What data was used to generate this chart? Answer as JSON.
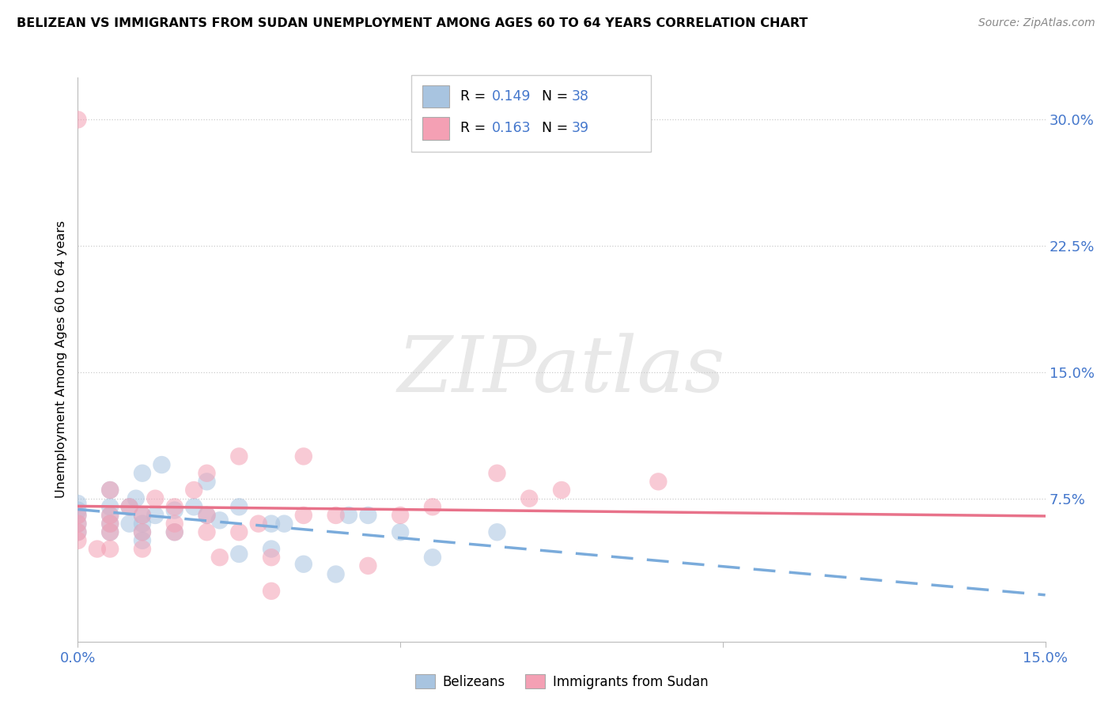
{
  "title": "BELIZEAN VS IMMIGRANTS FROM SUDAN UNEMPLOYMENT AMONG AGES 60 TO 64 YEARS CORRELATION CHART",
  "source": "Source: ZipAtlas.com",
  "ylabel": "Unemployment Among Ages 60 to 64 years",
  "xlim": [
    0.0,
    0.15
  ],
  "ylim": [
    -0.01,
    0.325
  ],
  "xtick_positions": [
    0.0,
    0.05,
    0.1,
    0.15
  ],
  "xticklabels": [
    "0.0%",
    "",
    "",
    "15.0%"
  ],
  "ytick_positions": [
    0.075,
    0.15,
    0.225,
    0.3
  ],
  "ytick_labels": [
    "7.5%",
    "15.0%",
    "22.5%",
    "30.0%"
  ],
  "belizean_color": "#a8c4e0",
  "sudan_color": "#f4a0b4",
  "trend_blue": "#7aabdb",
  "trend_pink": "#e8728a",
  "label_color": "#4477cc",
  "belizean_R": 0.149,
  "belizean_N": 38,
  "sudan_R": 0.163,
  "sudan_N": 39,
  "watermark_text": "ZIPatlas",
  "belizean_x": [
    0.0,
    0.0,
    0.0,
    0.0,
    0.0,
    0.005,
    0.005,
    0.005,
    0.005,
    0.005,
    0.008,
    0.008,
    0.009,
    0.01,
    0.01,
    0.01,
    0.01,
    0.01,
    0.012,
    0.013,
    0.015,
    0.015,
    0.018,
    0.02,
    0.02,
    0.022,
    0.025,
    0.025,
    0.03,
    0.03,
    0.032,
    0.035,
    0.04,
    0.042,
    0.045,
    0.05,
    0.055,
    0.065
  ],
  "belizean_y": [
    0.055,
    0.06,
    0.065,
    0.068,
    0.072,
    0.055,
    0.06,
    0.065,
    0.07,
    0.08,
    0.06,
    0.07,
    0.075,
    0.05,
    0.055,
    0.06,
    0.065,
    0.09,
    0.065,
    0.095,
    0.055,
    0.068,
    0.07,
    0.065,
    0.085,
    0.062,
    0.042,
    0.07,
    0.045,
    0.06,
    0.06,
    0.036,
    0.03,
    0.065,
    0.065,
    0.055,
    0.04,
    0.055
  ],
  "sudan_x": [
    0.0,
    0.0,
    0.0,
    0.0,
    0.0,
    0.003,
    0.005,
    0.005,
    0.005,
    0.005,
    0.005,
    0.008,
    0.01,
    0.01,
    0.01,
    0.012,
    0.015,
    0.015,
    0.015,
    0.018,
    0.02,
    0.02,
    0.02,
    0.022,
    0.025,
    0.025,
    0.028,
    0.03,
    0.03,
    0.035,
    0.035,
    0.04,
    0.045,
    0.05,
    0.055,
    0.065,
    0.07,
    0.075,
    0.09
  ],
  "sudan_y": [
    0.05,
    0.055,
    0.06,
    0.065,
    0.3,
    0.045,
    0.045,
    0.055,
    0.06,
    0.065,
    0.08,
    0.07,
    0.045,
    0.055,
    0.065,
    0.075,
    0.055,
    0.06,
    0.07,
    0.08,
    0.055,
    0.065,
    0.09,
    0.04,
    0.055,
    0.1,
    0.06,
    0.02,
    0.04,
    0.065,
    0.1,
    0.065,
    0.035,
    0.065,
    0.07,
    0.09,
    0.075,
    0.08,
    0.085
  ]
}
